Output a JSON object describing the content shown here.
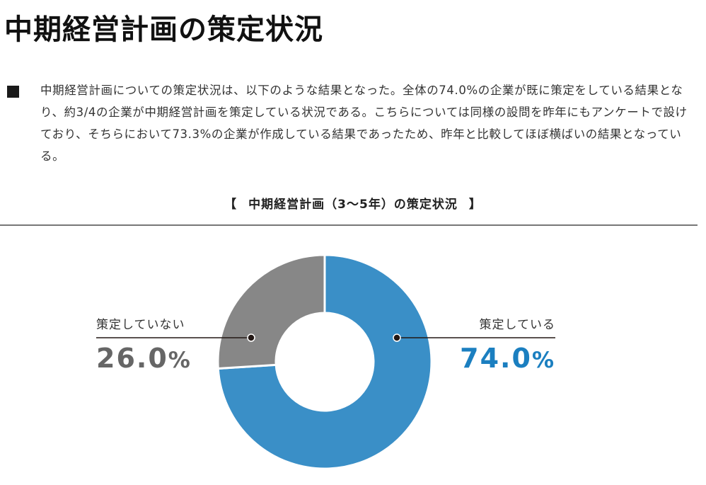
{
  "page": {
    "title": "中期経営計画の策定状況",
    "summary": "中期経営計画についての策定状況は、以下のような結果となった。全体の74.0%の企業が既に策定をしている結果となり、約3/4の企業が中期経営計画を策定している状況である。こちらについては同様の設問を昨年にもアンケートで設けており、そちらにおいて73.3%の企業が作成している結果であったため、昨年と比較してほぼ横ばいの結果となっている。"
  },
  "chart_data": {
    "type": "pie",
    "variant": "donut",
    "title_open": "【",
    "title": "中期経営計画（3〜5年）の策定状況",
    "title_close": "】",
    "slices": [
      {
        "label": "策定している",
        "value": 74.0,
        "display": "74.0",
        "unit": "%",
        "color": "#3a8fc7",
        "label_color": "#1b7fc0"
      },
      {
        "label": "策定していない",
        "value": 26.0,
        "display": "26.0",
        "unit": "%",
        "color": "#878787",
        "label_color": "#666666"
      }
    ],
    "start": "top",
    "direction": "clockwise"
  }
}
